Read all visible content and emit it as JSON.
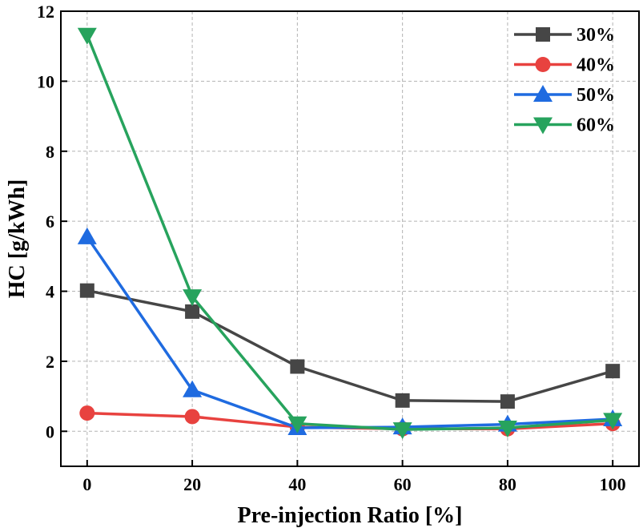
{
  "chart_data": {
    "type": "line",
    "title": "",
    "xlabel": "Pre-injection Ratio [%]",
    "ylabel": "HC [g/kWh]",
    "x": [
      0,
      20,
      40,
      60,
      80,
      100
    ],
    "xlim": [
      -5,
      105
    ],
    "ylim": [
      -1,
      12
    ],
    "xticks": [
      0,
      20,
      40,
      60,
      80,
      100
    ],
    "yticks": [
      0,
      2,
      4,
      6,
      8,
      10,
      12
    ],
    "grid": true,
    "legend_position": "top-right",
    "series": [
      {
        "name": "30%",
        "color": "#464646",
        "marker": "square",
        "values": [
          4.02,
          3.42,
          1.85,
          0.88,
          0.85,
          1.72
        ]
      },
      {
        "name": "40%",
        "color": "#e8423f",
        "marker": "circle",
        "values": [
          0.52,
          0.42,
          0.12,
          0.07,
          0.07,
          0.22
        ]
      },
      {
        "name": "50%",
        "color": "#1f6be0",
        "marker": "triangle-up",
        "values": [
          5.55,
          1.18,
          0.1,
          0.12,
          0.2,
          0.35
        ]
      },
      {
        "name": "60%",
        "color": "#27a35d",
        "marker": "triangle-down",
        "values": [
          11.32,
          3.85,
          0.22,
          0.05,
          0.1,
          0.32
        ]
      }
    ]
  }
}
